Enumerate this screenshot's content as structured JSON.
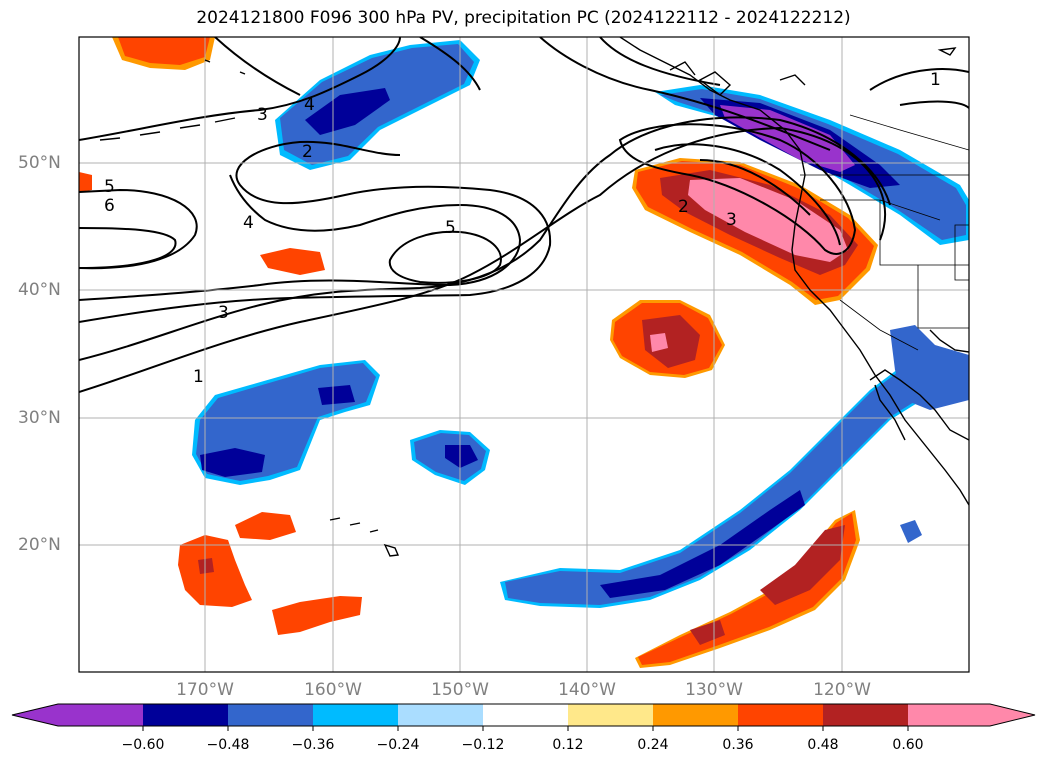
{
  "title": "2024121800 F096 300 hPa PV, precipitation PC (2024122112 - 2024122212)",
  "lat_labels": [
    "50°N",
    "40°N",
    "30°N",
    "20°N"
  ],
  "lon_labels": [
    "170°W",
    "160°W",
    "150°W",
    "140°W",
    "130°W",
    "120°W"
  ],
  "contour_labels": [
    "1",
    "2",
    "3",
    "4",
    "5",
    "6"
  ],
  "colorbar": {
    "ticks": [
      "−0.60",
      "−0.48",
      "−0.36",
      "−0.24",
      "−0.12",
      "0.12",
      "0.24",
      "0.36",
      "0.48",
      "0.60"
    ],
    "colors": [
      "#9933cc",
      "#000099",
      "#3366cc",
      "#00bbff",
      "#aaddff",
      "#ffffff",
      "#ffe88a",
      "#ff9900",
      "#ff4400",
      "#b22222",
      "#ff88aa"
    ]
  },
  "colors": {
    "pos_orange": "#ff4400",
    "pos_red": "#b22222",
    "pos_pink": "#ff88aa",
    "neg_blue": "#3366cc",
    "neg_navy": "#000099",
    "neg_purple": "#9933cc",
    "light_blue": "#00bbff"
  }
}
